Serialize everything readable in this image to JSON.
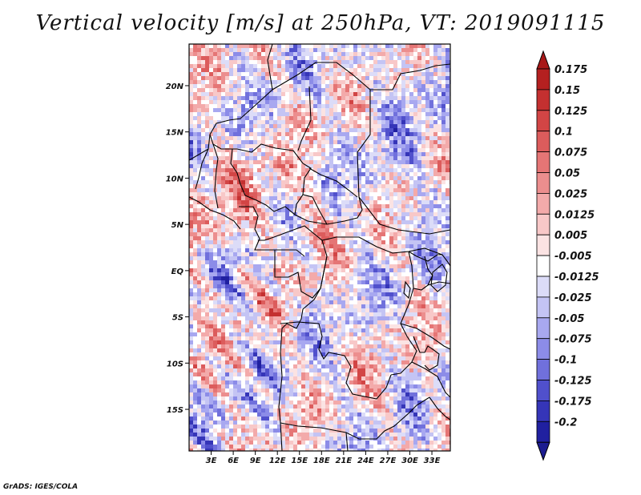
{
  "title": "Vertical velocity [m/s] at 250hPa, VT: 2019091115",
  "credit": "GrADS: IGES/COLA",
  "map": {
    "lat_range": [
      -19.5,
      24.5
    ],
    "lon_range": [
      0,
      35.5
    ],
    "lat_ticks": [
      {
        "value": 20,
        "label": "20N"
      },
      {
        "value": 15,
        "label": "15N"
      },
      {
        "value": 10,
        "label": "10N"
      },
      {
        "value": 5,
        "label": "5N"
      },
      {
        "value": 0,
        "label": "EQ"
      },
      {
        "value": -5,
        "label": "5S"
      },
      {
        "value": -10,
        "label": "10S"
      },
      {
        "value": -15,
        "label": "15S"
      }
    ],
    "lon_ticks": [
      {
        "value": 3,
        "label": "3E"
      },
      {
        "value": 6,
        "label": "6E"
      },
      {
        "value": 9,
        "label": "9E"
      },
      {
        "value": 12,
        "label": "12E"
      },
      {
        "value": 15,
        "label": "15E"
      },
      {
        "value": 18,
        "label": "18E"
      },
      {
        "value": 21,
        "label": "21E"
      },
      {
        "value": 24,
        "label": "24E"
      },
      {
        "value": 27,
        "label": "27E"
      },
      {
        "value": 30,
        "label": "30E"
      },
      {
        "value": 33,
        "label": "33E"
      }
    ]
  },
  "colorbar": {
    "unit": "m/s",
    "levels": [
      {
        "label": "0.175",
        "value": 0.175,
        "color": "#b42020"
      },
      {
        "label": "0.15",
        "value": 0.15,
        "color": "#c43030"
      },
      {
        "label": "0.125",
        "value": 0.125,
        "color": "#d24545"
      },
      {
        "label": "0.1",
        "value": 0.1,
        "color": "#dc5c5c"
      },
      {
        "label": "0.075",
        "value": 0.075,
        "color": "#e57575"
      },
      {
        "label": "0.05",
        "value": 0.05,
        "color": "#ec8e8e"
      },
      {
        "label": "0.025",
        "value": 0.025,
        "color": "#f3aaaa"
      },
      {
        "label": "0.0125",
        "value": 0.0125,
        "color": "#f8c8c8"
      },
      {
        "label": "0.005",
        "value": 0.005,
        "color": "#fbe3e3"
      },
      {
        "label": "-0.005",
        "value": -0.005,
        "color": "#ffffff"
      },
      {
        "label": "-0.0125",
        "value": -0.0125,
        "color": "#dcdcf8"
      },
      {
        "label": "-0.025",
        "value": -0.025,
        "color": "#c4c4f4"
      },
      {
        "label": "-0.05",
        "value": -0.05,
        "color": "#a8a8f0"
      },
      {
        "label": "-0.075",
        "value": -0.075,
        "color": "#8c8ce8"
      },
      {
        "label": "-0.1",
        "value": -0.1,
        "color": "#7070dc"
      },
      {
        "label": "-0.125",
        "value": -0.125,
        "color": "#5050cc"
      },
      {
        "label": "-0.175",
        "value": -0.175,
        "color": "#3535b8"
      },
      {
        "label": "-0.2",
        "value": -0.2,
        "color": "#2020a0"
      }
    ],
    "top_color": "#a81818",
    "bottom_color": "#1c1c90"
  }
}
